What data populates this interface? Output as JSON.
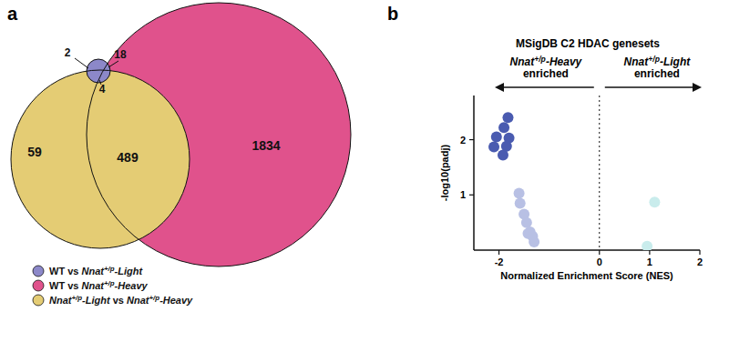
{
  "chart_data": [
    {
      "type": "venn",
      "panel": "a",
      "legend": "bottom-left",
      "sets": [
        {
          "name": "WT vs Nnat+/p-Light",
          "color": "#8c88c9"
        },
        {
          "name": "WT vs Nnat+/p-Heavy",
          "color": "#e0528c"
        },
        {
          "name": "Nnat+/p-Light vs Nnat+/p-Heavy",
          "color": "#e4cc74"
        }
      ],
      "regions": [
        2,
        18,
        4,
        59,
        489,
        1834
      ]
    },
    {
      "type": "scatter",
      "panel": "b",
      "title": "MSigDB C2 HDAC genesets",
      "x_label": "Normalized Enrichment Score (NES)",
      "y_label": "-log10(padj)",
      "annotations": [
        "Nnat+/p-Heavy enriched",
        "Nnat+/p-Light enriched"
      ],
      "xlim": [
        -2.5,
        2
      ],
      "xticks": [
        -2,
        0,
        1,
        2
      ],
      "ylim": [
        0,
        2.8
      ],
      "yticks": [
        1,
        2
      ],
      "vline": 0,
      "marker": "circle",
      "series": [
        {
          "color": "#4a5bb0",
          "x": [
            -1.82,
            -1.9,
            -2.05,
            -1.8,
            -2.1,
            -1.85,
            -1.92
          ],
          "values": [
            2.4,
            2.22,
            2.05,
            2.03,
            1.87,
            1.88,
            1.72
          ]
        },
        {
          "color": "#b8c0e4",
          "x": [
            -1.6,
            -1.58,
            -1.5,
            -1.45,
            -1.38,
            -1.42,
            -1.33,
            -1.3
          ],
          "values": [
            1.03,
            0.85,
            0.65,
            0.5,
            0.33,
            0.3,
            0.25,
            0.15
          ]
        },
        {
          "color": "#c9ecec",
          "x": [
            1.1,
            0.95
          ],
          "values": [
            0.87,
            0.07
          ]
        }
      ]
    }
  ]
}
